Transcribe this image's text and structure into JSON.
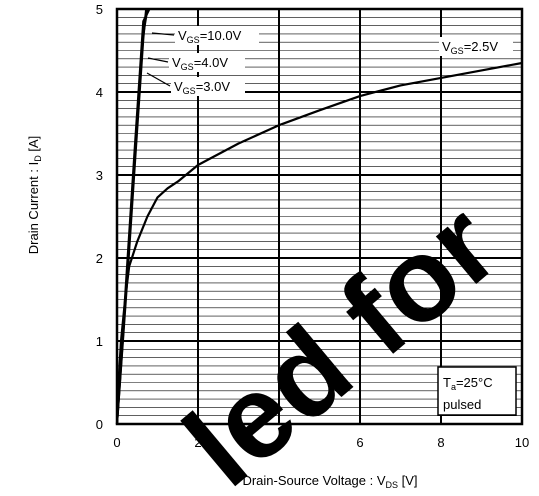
{
  "chart_data": {
    "type": "line",
    "xlabel": {
      "main": "Drain-Source Voltage : V",
      "sub": "DS",
      "unit": " [V]"
    },
    "ylabel": {
      "main": "Drain Current : I",
      "sub": "D",
      "unit": " [A]"
    },
    "xlim": [
      0,
      10
    ],
    "ylim": [
      0,
      5
    ],
    "x_ticks": [
      0,
      2,
      4,
      6,
      8,
      10
    ],
    "y_ticks": [
      0,
      1,
      2,
      3,
      4,
      5
    ],
    "grid": true,
    "series": [
      {
        "name": "VGS=10.0V",
        "label": {
          "main": "V",
          "sub": "GS",
          "rest": "=10.0V"
        },
        "x": [
          0,
          0.1,
          0.25,
          0.45,
          0.65,
          0.8
        ],
        "y": [
          0,
          0.75,
          1.9,
          3.4,
          4.85,
          5.0
        ]
      },
      {
        "name": "VGS=4.0V",
        "label": {
          "main": "V",
          "sub": "GS",
          "rest": "=4.0V"
        },
        "x": [
          0,
          0.1,
          0.25,
          0.45,
          0.65,
          0.75
        ],
        "y": [
          0,
          0.7,
          1.8,
          3.3,
          4.7,
          5.0
        ]
      },
      {
        "name": "VGS=3.0V",
        "label": {
          "main": "V",
          "sub": "GS",
          "rest": "=3.0V"
        },
        "x": [
          0,
          0.1,
          0.25,
          0.45,
          0.65,
          0.72
        ],
        "y": [
          0,
          0.68,
          1.72,
          3.2,
          4.65,
          5.0
        ]
      },
      {
        "name": "VGS=2.5V",
        "label": {
          "main": "V",
          "sub": "GS",
          "rest": "=2.5V"
        },
        "x": [
          0,
          0.05,
          0.1,
          0.2,
          0.3,
          0.5,
          0.75,
          1.0,
          1.25,
          1.5,
          2,
          3,
          4,
          5,
          6,
          7,
          8,
          9,
          10
        ],
        "y": [
          0,
          0.6,
          1.0,
          1.5,
          1.9,
          2.2,
          2.5,
          2.73,
          2.84,
          2.92,
          3.12,
          3.38,
          3.6,
          3.78,
          3.95,
          4.08,
          4.17,
          4.26,
          4.35
        ]
      }
    ],
    "annotation": {
      "line1_main": "T",
      "line1_sub": "a",
      "line1_rest": "=25°C",
      "line2": "pulsed"
    }
  },
  "watermark": {
    "text": "led for",
    "color": "#000000"
  }
}
